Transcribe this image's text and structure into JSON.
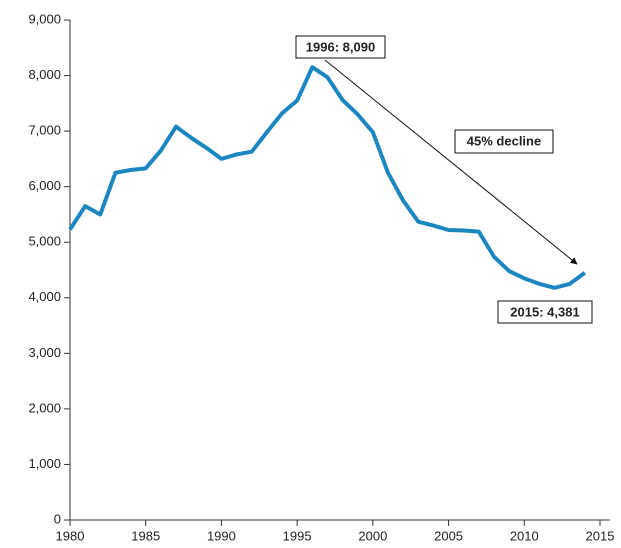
{
  "chart_data": {
    "type": "line",
    "x": [
      1980,
      1981,
      1982,
      1983,
      1984,
      1985,
      1986,
      1987,
      1988,
      1989,
      1990,
      1991,
      1992,
      1993,
      1994,
      1995,
      1996,
      1997,
      1998,
      1999,
      2000,
      2001,
      2002,
      2003,
      2004,
      2005,
      2006,
      2007,
      2008,
      2009,
      2010,
      2011,
      2012,
      2013,
      2014
    ],
    "series": [
      {
        "color": "#1b86bf",
        "values": [
          5230,
          5650,
          5500,
          6250,
          6300,
          6330,
          6650,
          7080,
          6880,
          6700,
          6500,
          6580,
          6630,
          6980,
          7320,
          7550,
          8150,
          7970,
          7560,
          7300,
          6980,
          6250,
          5750,
          5370,
          5300,
          5220,
          5210,
          5190,
          4740,
          4480,
          4350,
          4250,
          4180,
          4250,
          4450
        ]
      }
    ],
    "xlim": [
      1980,
      2015
    ],
    "xticks": [
      1980,
      1985,
      1990,
      1995,
      2000,
      2005,
      2010,
      2015
    ],
    "ylim": [
      0,
      9000
    ],
    "yticks": [
      0,
      {
        "value": 1000,
        "label": "1,000"
      },
      {
        "value": 2000,
        "label": "2,000"
      },
      {
        "value": 3000,
        "label": "3,000"
      },
      {
        "value": 4000,
        "label": "4,000"
      },
      {
        "value": 5000,
        "label": "5,000"
      },
      {
        "value": 6000,
        "label": "6,000"
      },
      {
        "value": 7000,
        "label": "7,000"
      },
      {
        "value": 8000,
        "label": "8,000"
      },
      {
        "value": 9000,
        "label": "9,000"
      }
    ],
    "annotations": [
      "1996: 8,090",
      "45% decline",
      "2015: 4,381"
    ]
  }
}
